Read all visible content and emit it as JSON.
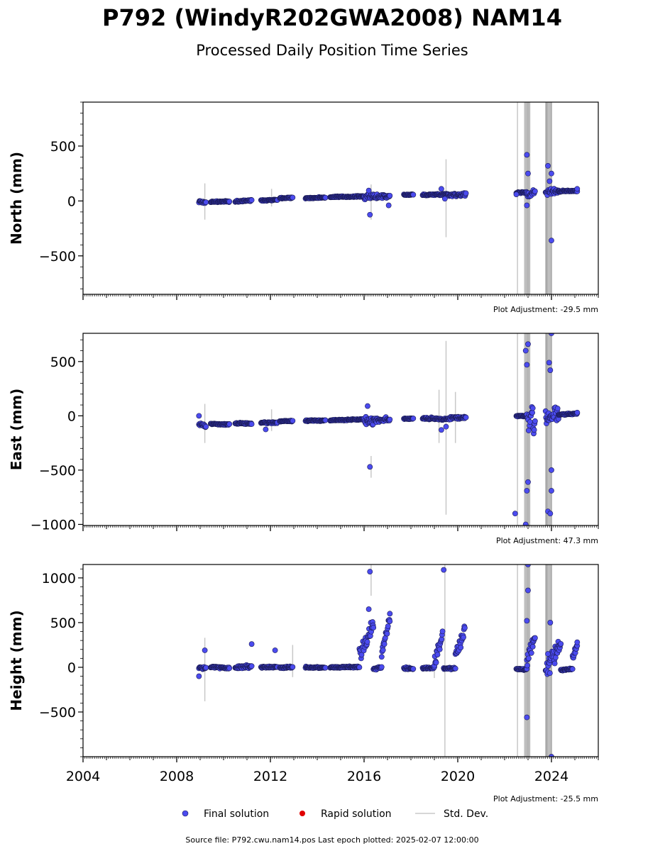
{
  "title": "P792 (WindyR202GWA2008) NAM14",
  "subtitle": "Processed Daily Position Time Series",
  "footer": "Source file: P792.cwu.nam14.pos  Last epoch plotted: 2025-02-07 12:00:00",
  "legend": {
    "final": "Final solution",
    "rapid": "Rapid solution",
    "stddev": "Std. Dev."
  },
  "colors": {
    "final": "#4b4bef",
    "final_edge": "#1a1a55",
    "rapid": "#e00000",
    "stddev": "#c8c8c8",
    "spike": "#555555"
  },
  "chart_data": {
    "type": "scatter",
    "x_unit": "year",
    "xlim": [
      2004.0,
      2026.0
    ],
    "x_ticks": [
      "2004",
      "2008",
      "2012",
      "2016",
      "2020",
      "2024"
    ],
    "x_tick_values": [
      2004,
      2008,
      2012,
      2016,
      2020,
      2024
    ],
    "panels": [
      {
        "key": "north",
        "ylabel": "North (mm)",
        "adjustment": "Plot Adjustment: -29.5 mm",
        "ylim": [
          -850,
          900
        ],
        "y_ticks": [
          -500,
          0,
          500
        ],
        "y_tick_labels": [
          "−500",
          "0",
          "500"
        ],
        "segments": [
          {
            "x": [
              2008.95,
              2009.25
            ],
            "y": [
              -5,
              -15
            ],
            "spread": 14
          },
          {
            "x": [
              2009.45,
              2010.25
            ],
            "y": [
              -8,
              -5
            ],
            "spread": 8
          },
          {
            "x": [
              2010.5,
              2011.2
            ],
            "y": [
              -5,
              5
            ],
            "spread": 10
          },
          {
            "x": [
              2011.6,
              2012.3
            ],
            "y": [
              5,
              12
            ],
            "spread": 8
          },
          {
            "x": [
              2012.4,
              2012.95
            ],
            "y": [
              25,
              30
            ],
            "spread": 8
          },
          {
            "x": [
              2013.5,
              2014.35
            ],
            "y": [
              25,
              32
            ],
            "spread": 8
          },
          {
            "x": [
              2014.55,
              2016.0
            ],
            "y": [
              35,
              42
            ],
            "spread": 8
          },
          {
            "x": [
              2016.0,
              2016.4
            ],
            "y": [
              35,
              40
            ],
            "spread": 35
          },
          {
            "x": [
              2016.4,
              2017.1
            ],
            "y": [
              40,
              45
            ],
            "spread": 30
          },
          {
            "x": [
              2017.7,
              2018.1
            ],
            "y": [
              55,
              58
            ],
            "spread": 8
          },
          {
            "x": [
              2018.5,
              2019.6
            ],
            "y": [
              55,
              62
            ],
            "spread": 10
          },
          {
            "x": [
              2019.6,
              2020.35
            ],
            "y": [
              55,
              60
            ],
            "spread": 20
          },
          {
            "x": [
              2022.5,
              2022.95
            ],
            "y": [
              75,
              78
            ],
            "spread": 8
          },
          {
            "x": [
              2022.95,
              2023.3
            ],
            "y": [
              60,
              80
            ],
            "spread": 70
          },
          {
            "x": [
              2023.75,
              2024.3
            ],
            "y": [
              85,
              90
            ],
            "spread": 40
          },
          {
            "x": [
              2024.3,
              2025.1
            ],
            "y": [
              88,
              92
            ],
            "spread": 10
          }
        ],
        "outliers": [
          [
            2016.25,
            -125
          ],
          [
            2016.2,
            95
          ],
          [
            2017.05,
            -40
          ],
          [
            2019.3,
            110
          ],
          [
            2019.45,
            20
          ],
          [
            2022.5,
            60
          ],
          [
            2022.95,
            420
          ],
          [
            2023.0,
            250
          ],
          [
            2022.95,
            -40
          ],
          [
            2023.85,
            320
          ],
          [
            2023.92,
            180
          ],
          [
            2024.0,
            -360
          ],
          [
            2024.0,
            250
          ],
          [
            2025.1,
            110
          ]
        ],
        "stddev_bars": [
          [
            2009.2,
            -170,
            160
          ],
          [
            2012.05,
            -50,
            110
          ],
          [
            2019.5,
            -330,
            380
          ],
          [
            2016.3,
            -170,
            150
          ],
          [
            2022.55,
            -850,
            900
          ],
          [
            2023.8,
            -850,
            900
          ]
        ],
        "spike_clusters": [
          [
            2022.85,
            2023.1
          ],
          [
            2023.75,
            2024.05
          ]
        ]
      },
      {
        "key": "east",
        "ylabel": "East (mm)",
        "adjustment": "Plot Adjustment: 47.3 mm",
        "ylim": [
          -1010,
          760
        ],
        "y_ticks": [
          -1000,
          -500,
          0,
          500
        ],
        "y_tick_labels": [
          "−1000",
          "−500",
          "0",
          "500"
        ],
        "segments": [
          {
            "x": [
              2008.95,
              2009.25
            ],
            "y": [
              -75,
              -95
            ],
            "spread": 18
          },
          {
            "x": [
              2009.45,
              2010.25
            ],
            "y": [
              -75,
              -80
            ],
            "spread": 10
          },
          {
            "x": [
              2010.5,
              2011.2
            ],
            "y": [
              -70,
              -72
            ],
            "spread": 10
          },
          {
            "x": [
              2011.6,
              2012.3
            ],
            "y": [
              -65,
              -62
            ],
            "spread": 10
          },
          {
            "x": [
              2012.4,
              2012.95
            ],
            "y": [
              -50,
              -48
            ],
            "spread": 8
          },
          {
            "x": [
              2013.5,
              2014.35
            ],
            "y": [
              -45,
              -42
            ],
            "spread": 8
          },
          {
            "x": [
              2014.55,
              2016.0
            ],
            "y": [
              -42,
              -32
            ],
            "spread": 8
          },
          {
            "x": [
              2016.0,
              2016.4
            ],
            "y": [
              -50,
              -40
            ],
            "spread": 60
          },
          {
            "x": [
              2016.4,
              2017.1
            ],
            "y": [
              -40,
              -30
            ],
            "spread": 30
          },
          {
            "x": [
              2017.7,
              2018.1
            ],
            "y": [
              -28,
              -25
            ],
            "spread": 8
          },
          {
            "x": [
              2018.5,
              2019.6
            ],
            "y": [
              -25,
              -30
            ],
            "spread": 15
          },
          {
            "x": [
              2019.6,
              2020.35
            ],
            "y": [
              -20,
              -15
            ],
            "spread": 20
          },
          {
            "x": [
              2022.5,
              2022.95
            ],
            "y": [
              -2,
              0
            ],
            "spread": 8
          },
          {
            "x": [
              2022.95,
              2023.3
            ],
            "y": [
              -20,
              -60
            ],
            "spread": 180
          },
          {
            "x": [
              2023.75,
              2024.3
            ],
            "y": [
              0,
              10
            ],
            "spread": 120
          },
          {
            "x": [
              2024.3,
              2025.1
            ],
            "y": [
              10,
              20
            ],
            "spread": 10
          }
        ],
        "outliers": [
          [
            2008.95,
            0
          ],
          [
            2011.8,
            -125
          ],
          [
            2016.25,
            -470
          ],
          [
            2016.15,
            90
          ],
          [
            2019.3,
            -130
          ],
          [
            2019.5,
            -100
          ],
          [
            2022.45,
            -900
          ],
          [
            2022.9,
            600
          ],
          [
            2022.95,
            470
          ],
          [
            2023.0,
            660
          ],
          [
            2023.0,
            -610
          ],
          [
            2022.95,
            -690
          ],
          [
            2022.9,
            -1000
          ],
          [
            2023.85,
            -880
          ],
          [
            2023.9,
            490
          ],
          [
            2023.95,
            420
          ],
          [
            2024.0,
            760
          ],
          [
            2024.0,
            -500
          ],
          [
            2024.0,
            -690
          ],
          [
            2023.95,
            -900
          ],
          [
            2025.1,
            30
          ]
        ],
        "stddev_bars": [
          [
            2009.2,
            -250,
            110
          ],
          [
            2012.05,
            -140,
            60
          ],
          [
            2019.5,
            -910,
            690
          ],
          [
            2019.2,
            -250,
            240
          ],
          [
            2019.9,
            -250,
            220
          ],
          [
            2016.3,
            -570,
            -370
          ],
          [
            2022.55,
            -1010,
            760
          ],
          [
            2023.8,
            -1010,
            760
          ]
        ],
        "spike_clusters": [
          [
            2022.85,
            2023.1
          ],
          [
            2023.75,
            2024.05
          ]
        ]
      },
      {
        "key": "height",
        "ylabel": "Height (mm)",
        "adjustment": "Plot Adjustment: -25.5 mm",
        "ylim": [
          -1000,
          1150
        ],
        "y_ticks": [
          -500,
          0,
          500,
          1000
        ],
        "y_tick_labels": [
          "−500",
          "0",
          "500",
          "1000"
        ],
        "segments": [
          {
            "x": [
              2008.95,
              2009.25
            ],
            "y": [
              0,
              -5
            ],
            "spread": 25
          },
          {
            "x": [
              2009.45,
              2010.25
            ],
            "y": [
              5,
              -10
            ],
            "spread": 15
          },
          {
            "x": [
              2010.5,
              2011.2
            ],
            "y": [
              0,
              10
            ],
            "spread": 25
          },
          {
            "x": [
              2011.6,
              2012.3
            ],
            "y": [
              0,
              5
            ],
            "spread": 15
          },
          {
            "x": [
              2012.4,
              2012.95
            ],
            "y": [
              -5,
              0
            ],
            "spread": 15
          },
          {
            "x": [
              2013.5,
              2014.35
            ],
            "y": [
              0,
              -5
            ],
            "spread": 12
          },
          {
            "x": [
              2014.55,
              2015.8
            ],
            "y": [
              0,
              5
            ],
            "spread": 12
          },
          {
            "x": [
              2015.8,
              2016.4
            ],
            "y": [
              150,
              450
            ],
            "spread": 120
          },
          {
            "x": [
              2016.4,
              2016.75
            ],
            "y": [
              -20,
              0
            ],
            "spread": 15
          },
          {
            "x": [
              2016.75,
              2017.1
            ],
            "y": [
              150,
              550
            ],
            "spread": 80
          },
          {
            "x": [
              2017.7,
              2018.1
            ],
            "y": [
              -10,
              -20
            ],
            "spread": 15
          },
          {
            "x": [
              2018.5,
              2019.0
            ],
            "y": [
              -10,
              -5
            ],
            "spread": 15
          },
          {
            "x": [
              2019.0,
              2019.35
            ],
            "y": [
              50,
              350
            ],
            "spread": 100
          },
          {
            "x": [
              2019.4,
              2019.9
            ],
            "y": [
              -15,
              -10
            ],
            "spread": 15
          },
          {
            "x": [
              2019.9,
              2020.3
            ],
            "y": [
              150,
              400
            ],
            "spread": 100
          },
          {
            "x": [
              2022.5,
              2022.95
            ],
            "y": [
              -20,
              -25
            ],
            "spread": 12
          },
          {
            "x": [
              2022.95,
              2023.3
            ],
            "y": [
              50,
              350
            ],
            "spread": 150
          },
          {
            "x": [
              2023.75,
              2024.4
            ],
            "y": [
              -20,
              300
            ],
            "spread": 150
          },
          {
            "x": [
              2024.4,
              2024.9
            ],
            "y": [
              -30,
              -20
            ],
            "spread": 15
          },
          {
            "x": [
              2024.9,
              2025.1
            ],
            "y": [
              100,
              260
            ],
            "spread": 60
          }
        ],
        "outliers": [
          [
            2008.95,
            -100
          ],
          [
            2009.2,
            190
          ],
          [
            2011.2,
            260
          ],
          [
            2012.2,
            190
          ],
          [
            2016.25,
            1070
          ],
          [
            2016.2,
            650
          ],
          [
            2017.1,
            600
          ],
          [
            2019.4,
            1090
          ],
          [
            2022.95,
            -560
          ],
          [
            2023.0,
            1150
          ],
          [
            2023.0,
            860
          ],
          [
            2022.95,
            520
          ],
          [
            2023.85,
            150
          ],
          [
            2023.95,
            500
          ],
          [
            2024.0,
            -1000
          ],
          [
            2025.1,
            280
          ]
        ],
        "stddev_bars": [
          [
            2009.2,
            -380,
            330
          ],
          [
            2012.95,
            -110,
            250
          ],
          [
            2019.45,
            -1000,
            1150
          ],
          [
            2019.0,
            -120,
            70
          ],
          [
            2016.3,
            800,
            1150
          ],
          [
            2022.55,
            -1000,
            1150
          ],
          [
            2023.8,
            -1000,
            1150
          ]
        ],
        "spike_clusters": [
          [
            2022.85,
            2023.1
          ],
          [
            2023.75,
            2024.05
          ]
        ]
      }
    ]
  }
}
